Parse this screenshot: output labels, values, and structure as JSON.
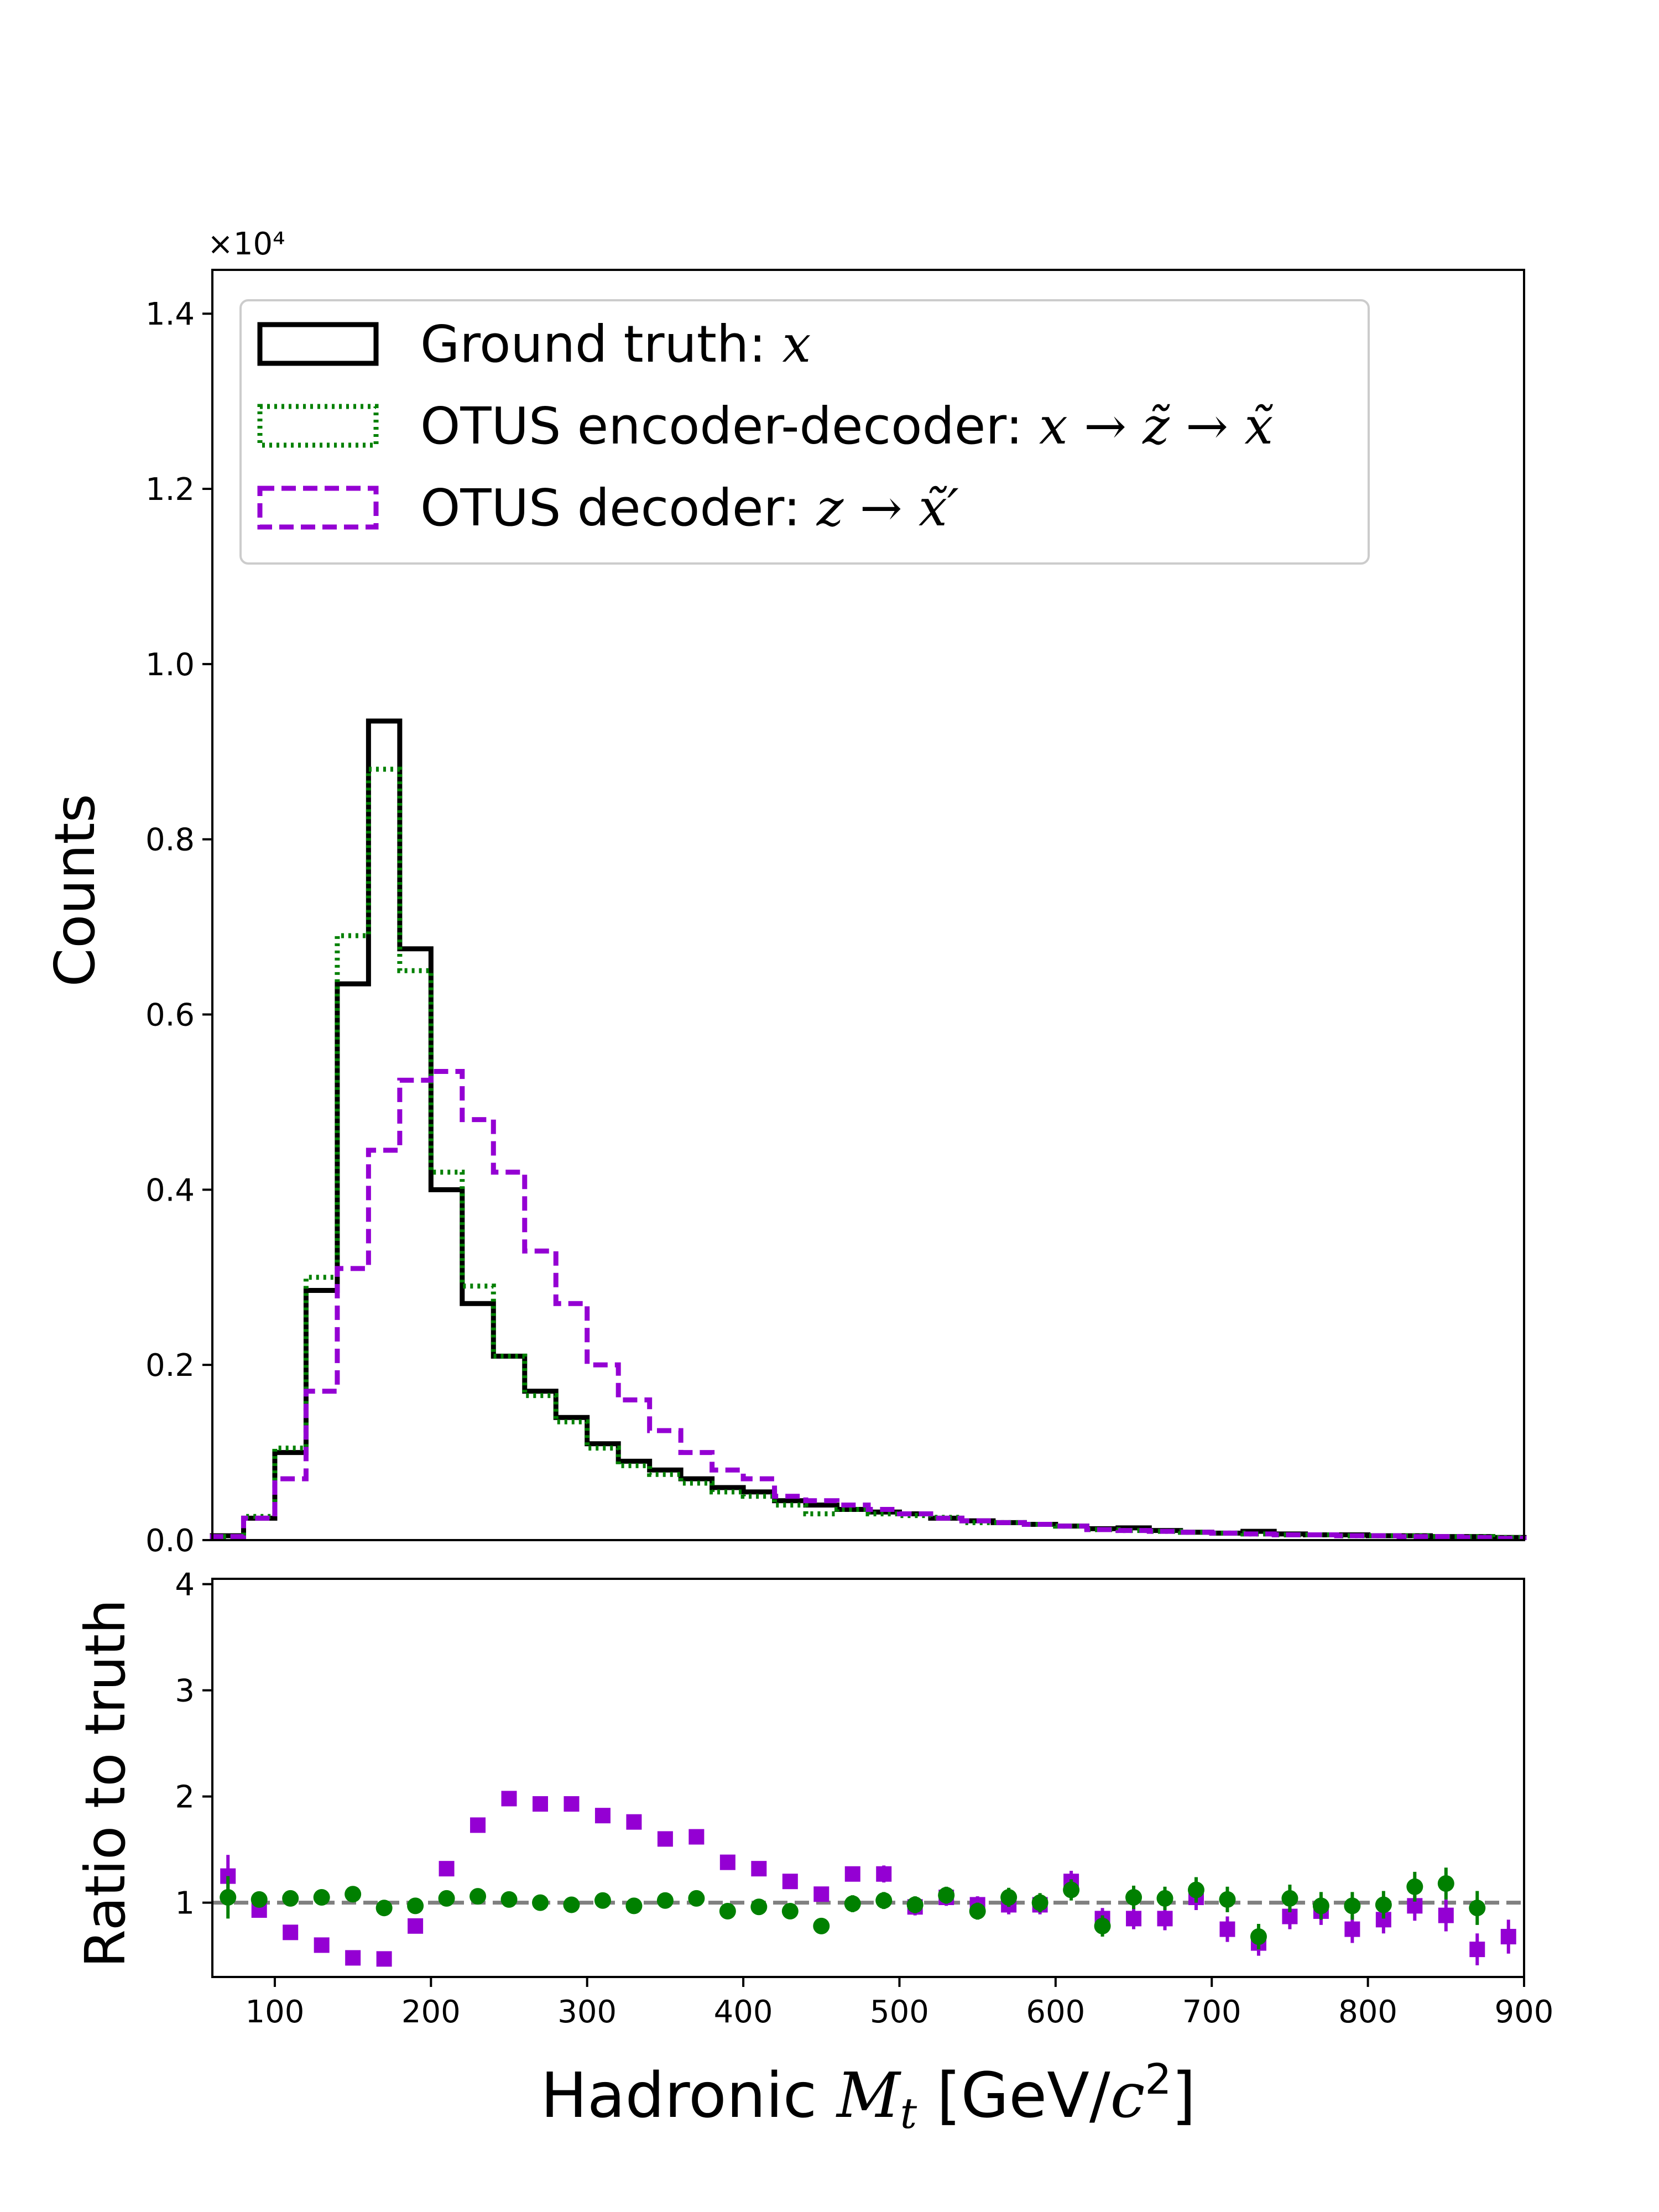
{
  "chart_data": [
    {
      "type": "step-histogram",
      "ylabel": "Counts",
      "y_multiplier": "×10⁴",
      "xlim": [
        60,
        900
      ],
      "ylim": [
        0,
        1.45
      ],
      "yticks": [
        "0.0",
        "0.2",
        "0.4",
        "0.6",
        "0.8",
        "1.0",
        "1.2",
        "1.4"
      ],
      "legend_position": "top-left",
      "bin_edges": [
        60,
        80,
        100,
        120,
        140,
        160,
        180,
        200,
        220,
        240,
        260,
        280,
        300,
        320,
        340,
        360,
        380,
        400,
        420,
        440,
        460,
        480,
        500,
        520,
        540,
        560,
        580,
        600,
        620,
        640,
        660,
        680,
        700,
        720,
        740,
        760,
        780,
        800,
        820,
        840,
        860,
        880,
        900
      ],
      "series": [
        {
          "name": "Ground truth: x",
          "legend_prefix": "Ground truth: ",
          "legend_math": "x",
          "color": "#000000",
          "style": "solid",
          "values": [
            0.005,
            0.025,
            0.1,
            0.285,
            0.635,
            0.935,
            0.675,
            0.4,
            0.27,
            0.21,
            0.17,
            0.14,
            0.11,
            0.09,
            0.08,
            0.07,
            0.06,
            0.055,
            0.045,
            0.04,
            0.035,
            0.032,
            0.03,
            0.025,
            0.022,
            0.02,
            0.018,
            0.016,
            0.013,
            0.014,
            0.011,
            0.009,
            0.008,
            0.01,
            0.007,
            0.006,
            0.006,
            0.005,
            0.005,
            0.004,
            0.004,
            0.003
          ]
        },
        {
          "name": "OTUS encoder-decoder: x → z̃ → x̃",
          "legend_prefix": "OTUS encoder-decoder: ",
          "legend_math": "x → z̃ → x̃",
          "color": "#008000",
          "style": "dotted",
          "values": [
            0.004,
            0.027,
            0.105,
            0.3,
            0.69,
            0.88,
            0.65,
            0.42,
            0.29,
            0.21,
            0.165,
            0.135,
            0.105,
            0.085,
            0.075,
            0.065,
            0.055,
            0.05,
            0.04,
            0.03,
            0.035,
            0.03,
            0.028,
            0.026,
            0.02,
            0.02,
            0.018,
            0.016,
            0.012,
            0.011,
            0.01,
            0.009,
            0.008,
            0.007,
            0.006,
            0.006,
            0.005,
            0.005,
            0.005,
            0.004,
            0.004,
            0.003
          ]
        },
        {
          "name": "OTUS decoder: z → x̃′",
          "legend_prefix": "OTUS decoder: ",
          "legend_math": "z → x̃′",
          "color": "#9400D3",
          "style": "dashed",
          "values": [
            0.004,
            0.025,
            0.07,
            0.17,
            0.31,
            0.445,
            0.525,
            0.535,
            0.48,
            0.42,
            0.33,
            0.27,
            0.2,
            0.16,
            0.125,
            0.1,
            0.08,
            0.07,
            0.05,
            0.045,
            0.04,
            0.035,
            0.03,
            0.025,
            0.022,
            0.02,
            0.018,
            0.016,
            0.012,
            0.011,
            0.01,
            0.009,
            0.008,
            0.007,
            0.006,
            0.006,
            0.005,
            0.005,
            0.004,
            0.004,
            0.003,
            0.002
          ]
        }
      ]
    },
    {
      "type": "scatter-errorbar",
      "xlabel": "Hadronic M",
      "xlabel_sub": "t",
      "xlabel_unit": "[GeV/c",
      "xlabel_unit_sup": "2",
      "xlabel_unit_end": "]",
      "ylabel": "Ratio to truth",
      "xlim": [
        60,
        900
      ],
      "ylim": [
        0.3,
        4.05
      ],
      "xticks": [
        100,
        200,
        300,
        400,
        500,
        600,
        700,
        800,
        900
      ],
      "yticks": [
        1,
        2,
        3,
        4
      ],
      "reference_line": 1,
      "x": [
        70,
        90,
        110,
        130,
        150,
        170,
        190,
        210,
        230,
        250,
        270,
        290,
        310,
        330,
        350,
        370,
        390,
        410,
        430,
        450,
        470,
        490,
        510,
        530,
        550,
        570,
        590,
        610,
        630,
        650,
        670,
        690,
        710,
        730,
        750,
        770,
        790,
        810,
        830,
        850,
        870,
        890
      ],
      "series": [
        {
          "name": "OTUS encoder-decoder",
          "color": "#008000",
          "marker": "circle",
          "values": [
            1.05,
            1.03,
            1.04,
            1.05,
            1.08,
            0.95,
            0.97,
            1.04,
            1.06,
            1.03,
            1.0,
            0.98,
            1.02,
            0.97,
            1.02,
            1.04,
            0.92,
            0.96,
            0.92,
            0.78,
            0.99,
            1.02,
            0.98,
            1.07,
            0.92,
            1.05,
            1.0,
            1.12,
            0.78,
            1.05,
            1.04,
            1.12,
            1.03,
            0.68,
            1.04,
            0.97,
            0.97,
            0.98,
            1.15,
            1.18,
            0.95,
            null
          ],
          "errors": [
            0.2,
            0.06,
            0.04,
            0.03,
            0.02,
            0.02,
            0.03,
            0.03,
            0.03,
            0.03,
            0.04,
            0.04,
            0.05,
            0.05,
            0.05,
            0.06,
            0.06,
            0.07,
            0.07,
            0.07,
            0.08,
            0.08,
            0.08,
            0.08,
            0.08,
            0.09,
            0.09,
            0.1,
            0.1,
            0.11,
            0.11,
            0.12,
            0.12,
            0.12,
            0.13,
            0.13,
            0.13,
            0.13,
            0.14,
            0.15,
            0.16,
            0.18
          ]
        },
        {
          "name": "OTUS decoder",
          "color": "#9400D3",
          "marker": "square",
          "values": [
            1.25,
            0.93,
            0.72,
            0.6,
            0.48,
            0.47,
            0.78,
            1.32,
            1.73,
            1.98,
            1.93,
            1.93,
            1.82,
            1.76,
            1.6,
            1.62,
            1.38,
            1.32,
            1.2,
            1.08,
            1.27,
            1.27,
            0.96,
            1.05,
            0.98,
            0.98,
            0.98,
            1.2,
            0.85,
            0.85,
            0.85,
            1.05,
            0.75,
            0.62,
            0.87,
            0.92,
            0.75,
            0.84,
            0.97,
            0.88,
            0.56,
            0.68
          ],
          "errors": [
            0.2,
            0.06,
            0.04,
            0.03,
            0.02,
            0.02,
            0.02,
            0.02,
            0.03,
            0.03,
            0.04,
            0.04,
            0.05,
            0.05,
            0.05,
            0.05,
            0.06,
            0.06,
            0.07,
            0.07,
            0.07,
            0.08,
            0.08,
            0.08,
            0.08,
            0.09,
            0.09,
            0.1,
            0.1,
            0.1,
            0.11,
            0.12,
            0.12,
            0.12,
            0.12,
            0.13,
            0.13,
            0.13,
            0.14,
            0.15,
            0.15,
            0.16
          ]
        }
      ]
    }
  ]
}
